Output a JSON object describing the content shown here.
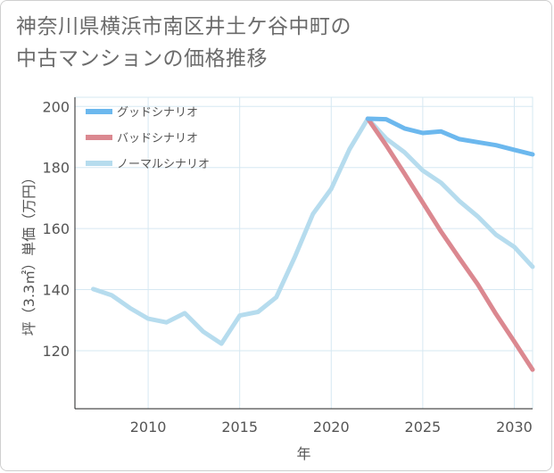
{
  "title_lines": [
    "神奈川県横浜市南区井土ケ谷中町の",
    "中古マンションの価格推移"
  ],
  "chart_data": {
    "type": "line",
    "xlabel": "年",
    "ylabel": "坪（3.3㎡）単価（万円）",
    "xlim": [
      2006,
      2031
    ],
    "ylim": [
      101,
      203
    ],
    "xticks": [
      2010,
      2015,
      2020,
      2025,
      2030
    ],
    "yticks": [
      120,
      140,
      160,
      180,
      200
    ],
    "legend_position": "top-left",
    "series": [
      {
        "name": "グッドシナリオ",
        "color": "#6cb8ee",
        "x": [
          2022,
          2023,
          2024,
          2025,
          2026,
          2027,
          2028,
          2029,
          2030,
          2031
        ],
        "values": [
          196,
          195.8,
          192.8,
          191.3,
          191.8,
          189.3,
          188.3,
          187.3,
          185.8,
          184.3
        ]
      },
      {
        "name": "バッドシナリオ",
        "color": "#db8890",
        "x": [
          2022,
          2023,
          2024,
          2025,
          2026,
          2027,
          2028,
          2029,
          2030,
          2031
        ],
        "values": [
          196,
          187.3,
          178,
          168.5,
          159,
          150.3,
          141.8,
          132,
          123,
          113.8
        ]
      },
      {
        "name": "ノーマルシナリオ",
        "color": "#b6dcee",
        "x": [
          2007,
          2008,
          2009,
          2010,
          2011,
          2012,
          2013,
          2014,
          2015,
          2016,
          2017,
          2018,
          2019,
          2020,
          2021,
          2022,
          2023,
          2024,
          2025,
          2026,
          2027,
          2028,
          2029,
          2030,
          2031
        ],
        "values": [
          140.2,
          138.2,
          134,
          130.5,
          129.3,
          132.3,
          126.3,
          122.3,
          131.5,
          132.7,
          137.5,
          150.5,
          164.8,
          173,
          186,
          196,
          189.5,
          185,
          179,
          175,
          169,
          164,
          158,
          154,
          147.5
        ]
      }
    ]
  }
}
